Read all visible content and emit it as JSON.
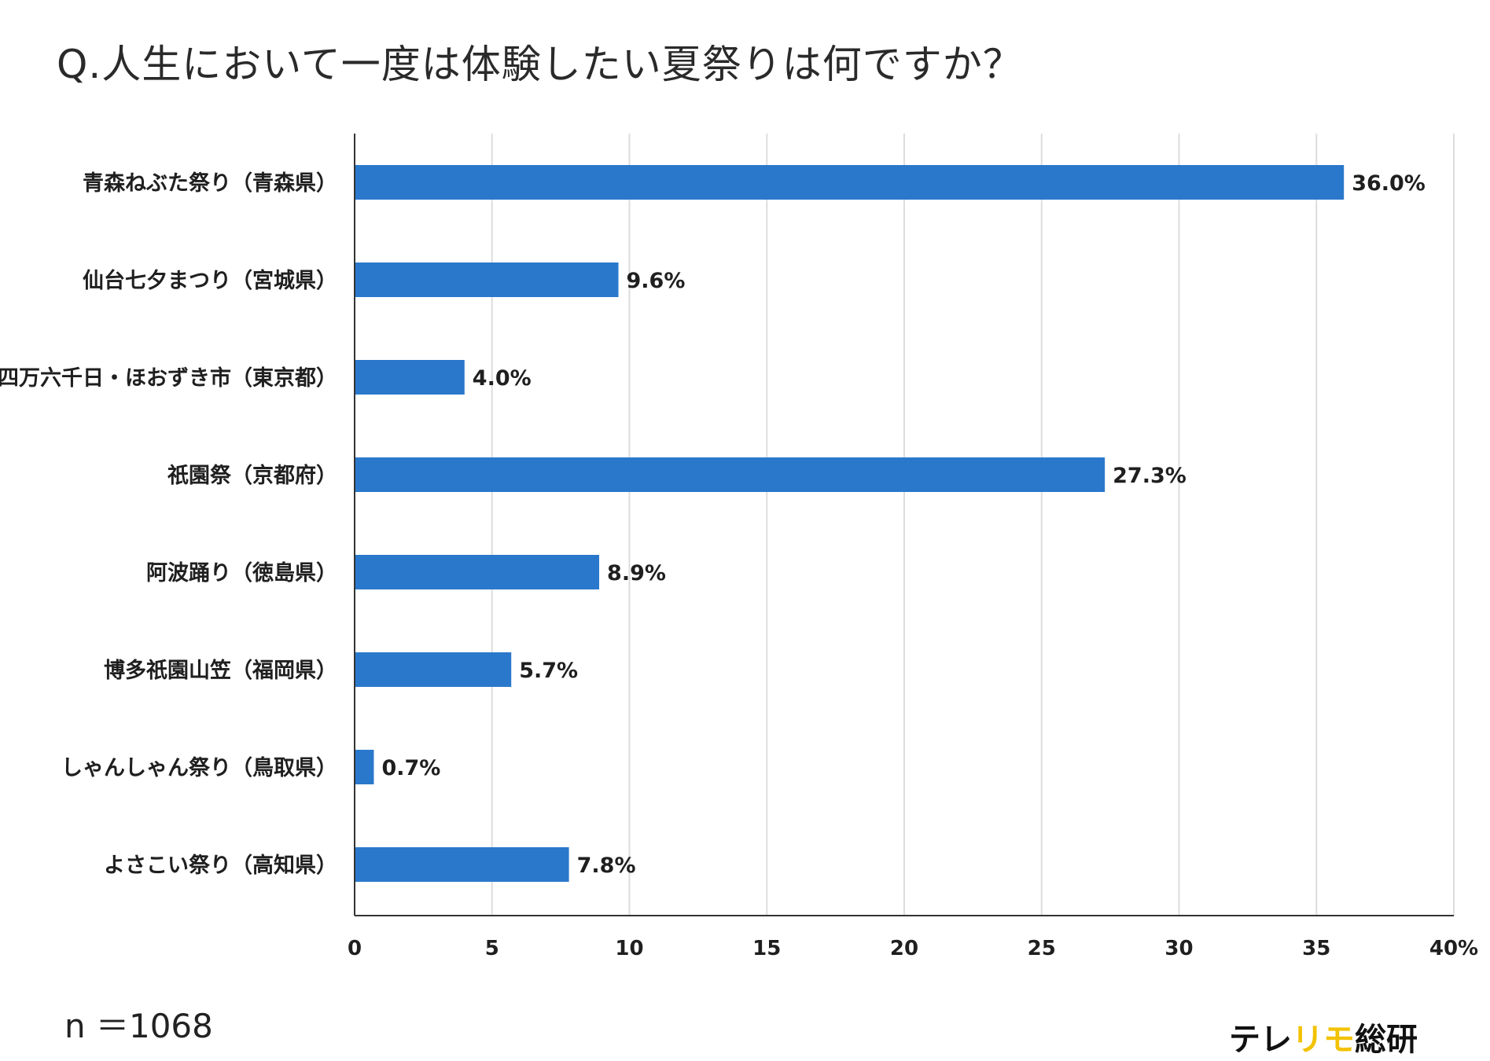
{
  "title": "Q.人生において一度は体験したい夏祭りは何ですか？",
  "sample_size": "n ＝1068",
  "brand": {
    "part1": "テレ",
    "part2": "リモ",
    "part3": "総研",
    "accent_color": "#f2c200"
  },
  "chart_data": {
    "type": "bar",
    "orientation": "horizontal",
    "title": "Q.人生において一度は体験したい夏祭りは何ですか？",
    "categories": [
      "青森ねぶた祭り（青森県）",
      "仙台七夕まつり（宮城県）",
      "四万六千日・ほおずき市（東京都）",
      "祇園祭（京都府）",
      "阿波踊り（徳島県）",
      "博多祇園山笠（福岡県）",
      "しゃんしゃん祭り（鳥取県）",
      "よさこい祭り（高知県）"
    ],
    "values": [
      36.0,
      9.6,
      4.0,
      27.3,
      8.9,
      5.7,
      0.7,
      7.8
    ],
    "data_labels": [
      "36.0%",
      "9.6%",
      "4.0%",
      "27.3%",
      "8.9%",
      "5.7%",
      "0.7%",
      "7.8%"
    ],
    "xlim": [
      0,
      40
    ],
    "xticks": [
      0,
      5,
      10,
      15,
      20,
      25,
      30,
      35,
      40
    ],
    "xtick_labels": [
      "0",
      "5",
      "10",
      "15",
      "20",
      "25",
      "30",
      "35",
      "40%"
    ],
    "bar_color": "#2a78cc",
    "grid_color": "#dddddd",
    "grid": true,
    "xlabel": "",
    "ylabel": ""
  }
}
